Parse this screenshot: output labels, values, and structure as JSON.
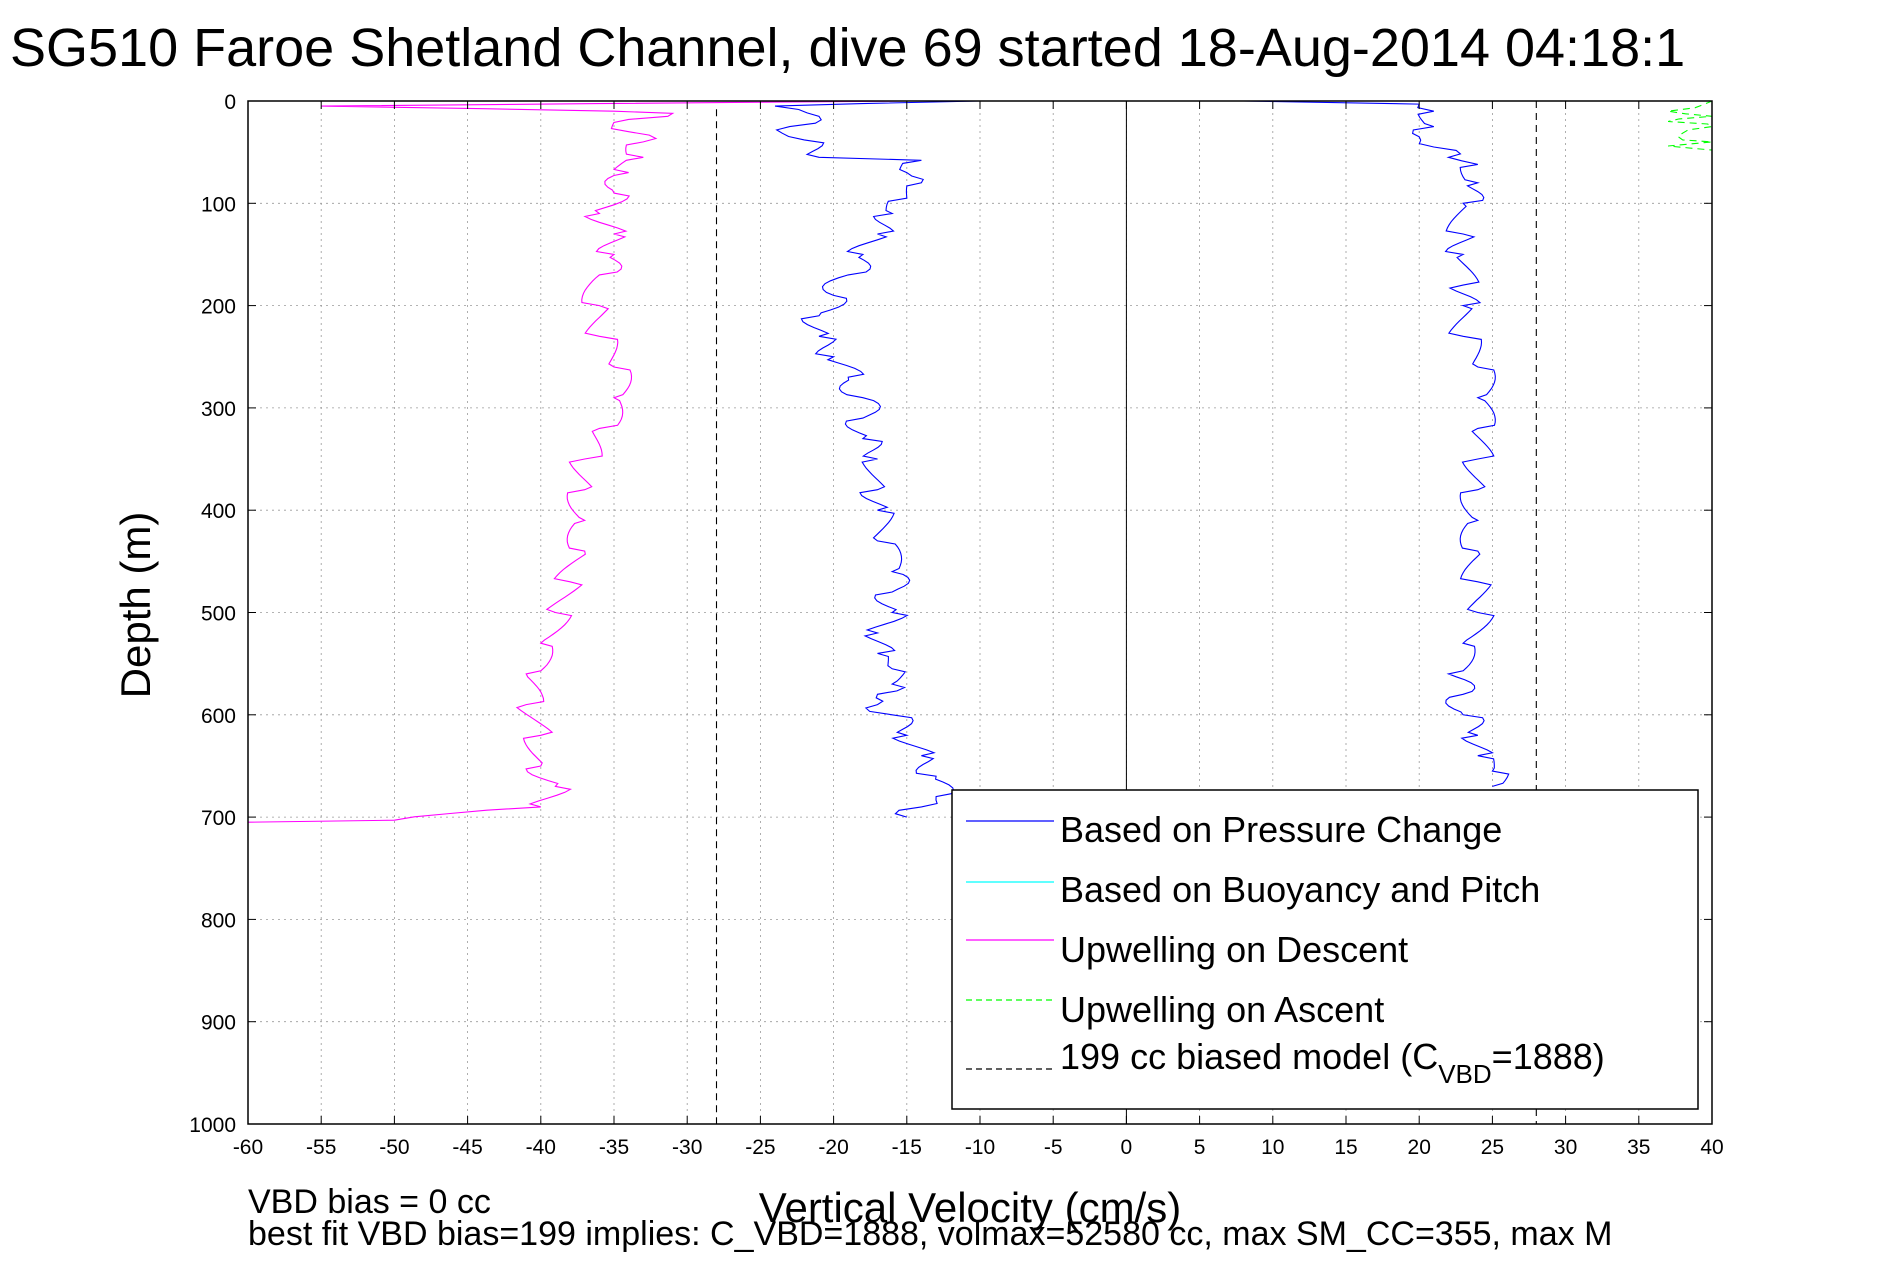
{
  "chart_data": {
    "type": "line",
    "title": "SG510 Faroe Shetland Channel, dive 69 started 18-Aug-2014 04:18:1",
    "xlabel": "Vertical Velocity (cm/s)",
    "ylabel": "Depth (m)",
    "xlim": [
      -60,
      40
    ],
    "ylim": [
      0,
      1000
    ],
    "y_reversed": true,
    "grid": true,
    "xticks": [
      "-60",
      "-55",
      "-50",
      "-45",
      "-40",
      "-35",
      "-30",
      "-25",
      "-20",
      "-15",
      "-10",
      "-5",
      "0",
      "5",
      "10",
      "15",
      "20",
      "25",
      "30",
      "35",
      "40"
    ],
    "yticks": [
      "0",
      "100",
      "200",
      "300",
      "400",
      "500",
      "600",
      "700",
      "800",
      "900",
      "1000"
    ],
    "legend_position": "bottom-right",
    "legend": [
      {
        "label": "Based on Pressure Change",
        "color": "#0000ff",
        "style": "solid"
      },
      {
        "label": "Based on Buoyancy and Pitch",
        "color": "#00ffff",
        "style": "solid"
      },
      {
        "label": "Upwelling on Descent",
        "color": "#ff00ff",
        "style": "solid"
      },
      {
        "label": "Upwelling on Ascent",
        "color": "#00ff00",
        "style": "dashed"
      },
      {
        "label": "199 cc biased model (C",
        "sub": "VBD",
        "suffix": "=1888)",
        "color": "#000000",
        "style": "dashed"
      }
    ],
    "series": [
      {
        "key": "pressure_descent",
        "color": "#0000ff",
        "style": "solid",
        "points": [
          [
            -10,
            0
          ],
          [
            -24,
            5
          ],
          [
            -21,
            15
          ],
          [
            -23,
            25
          ],
          [
            -22,
            38
          ],
          [
            -21,
            55
          ],
          [
            -14,
            58
          ],
          [
            -15,
            70
          ],
          [
            -14,
            80
          ],
          [
            -15,
            95
          ],
          [
            -16,
            110
          ],
          [
            -17,
            130
          ],
          [
            -18,
            150
          ],
          [
            -19,
            170
          ],
          [
            -20,
            190
          ],
          [
            -21,
            210
          ],
          [
            -21,
            230
          ],
          [
            -20,
            250
          ],
          [
            -19,
            270
          ],
          [
            -18,
            290
          ],
          [
            -18,
            310
          ],
          [
            -18,
            330
          ],
          [
            -17,
            350
          ],
          [
            -17,
            380
          ],
          [
            -17,
            400
          ],
          [
            -17,
            430
          ],
          [
            -16,
            460
          ],
          [
            -16,
            480
          ],
          [
            -16,
            500
          ],
          [
            -17,
            520
          ],
          [
            -17,
            540
          ],
          [
            -16,
            555
          ],
          [
            -16,
            570
          ],
          [
            -17,
            580
          ],
          [
            -17,
            590
          ],
          [
            -16,
            600
          ],
          [
            -15,
            620
          ],
          [
            -14,
            640
          ],
          [
            -13,
            660
          ],
          [
            -13,
            680
          ],
          [
            -14,
            690
          ],
          [
            -15,
            700
          ]
        ]
      },
      {
        "key": "pressure_ascent",
        "color": "#0000ff",
        "style": "solid",
        "points": [
          [
            0,
            0
          ],
          [
            8,
            0
          ],
          [
            20,
            3
          ],
          [
            21,
            10
          ],
          [
            21,
            25
          ],
          [
            20,
            35
          ],
          [
            21,
            45
          ],
          [
            22,
            55
          ],
          [
            24,
            62
          ],
          [
            24,
            80
          ],
          [
            23,
            100
          ],
          [
            23,
            130
          ],
          [
            23,
            150
          ],
          [
            23,
            180
          ],
          [
            23,
            200
          ],
          [
            23,
            230
          ],
          [
            24,
            260
          ],
          [
            24,
            290
          ],
          [
            24,
            320
          ],
          [
            24,
            350
          ],
          [
            24,
            380
          ],
          [
            24,
            410
          ],
          [
            24,
            440
          ],
          [
            24,
            470
          ],
          [
            24,
            500
          ],
          [
            23,
            530
          ],
          [
            22,
            560
          ],
          [
            23,
            580
          ],
          [
            23,
            600
          ],
          [
            24,
            620
          ],
          [
            24,
            640
          ],
          [
            25,
            655
          ],
          [
            25,
            670
          ]
        ]
      },
      {
        "key": "upwelling_descent",
        "color": "#ff00ff",
        "style": "solid",
        "points": [
          [
            -15,
            0
          ],
          [
            -55,
            5
          ],
          [
            -35,
            10
          ],
          [
            -31,
            12
          ],
          [
            -34,
            18
          ],
          [
            -34,
            30
          ],
          [
            -33,
            40
          ],
          [
            -33,
            55
          ],
          [
            -34,
            70
          ],
          [
            -35,
            90
          ],
          [
            -36,
            110
          ],
          [
            -35,
            130
          ],
          [
            -35,
            150
          ],
          [
            -36,
            170
          ],
          [
            -36,
            200
          ],
          [
            -36,
            230
          ],
          [
            -35,
            260
          ],
          [
            -35,
            290
          ],
          [
            -36,
            320
          ],
          [
            -37,
            350
          ],
          [
            -37,
            380
          ],
          [
            -37,
            410
          ],
          [
            -37,
            440
          ],
          [
            -38,
            470
          ],
          [
            -39,
            500
          ],
          [
            -40,
            530
          ],
          [
            -41,
            560
          ],
          [
            -41,
            590
          ],
          [
            -40,
            620
          ],
          [
            -40,
            650
          ],
          [
            -39,
            670
          ],
          [
            -40,
            690
          ],
          [
            -50,
            703
          ],
          [
            -60,
            705
          ]
        ]
      },
      {
        "key": "upwelling_ascent",
        "color": "#00ff00",
        "style": "dashed",
        "points": [
          [
            8,
            0
          ],
          [
            40,
            0
          ],
          [
            37,
            10
          ],
          [
            40,
            15
          ],
          [
            37,
            20
          ],
          [
            40,
            25
          ],
          [
            38,
            38
          ],
          [
            40,
            40
          ],
          [
            37,
            44
          ],
          [
            40,
            48
          ]
        ]
      },
      {
        "key": "model_descent",
        "color": "#000000",
        "style": "dashed",
        "points": [
          [
            -28,
            8
          ],
          [
            -28,
            1000
          ]
        ]
      },
      {
        "key": "model_ascent",
        "color": "#000000",
        "style": "dashed",
        "points": [
          [
            28,
            0
          ],
          [
            28,
            1000
          ]
        ]
      }
    ],
    "annotations": [
      "VBD bias = 0 cc",
      "best fit VBD bias=199 implies: C_VBD=1888, volmax=52580 cc, max SM_CC=355, max M"
    ]
  }
}
